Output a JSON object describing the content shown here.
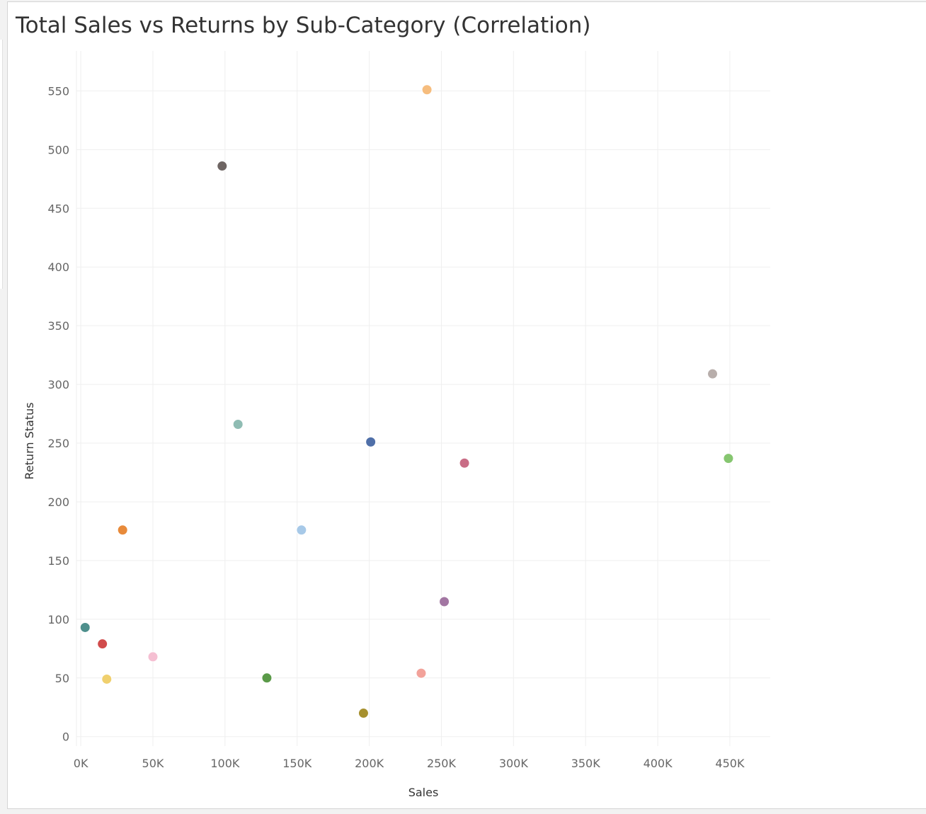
{
  "chart_data": {
    "type": "scatter",
    "title": "Total Sales vs Returns by Sub-Category (Correlation)",
    "xlabel": "Sales",
    "ylabel": "Return Status",
    "xlim": [
      -3000,
      478000
    ],
    "ylim": [
      -8,
      584
    ],
    "x_ticks": [
      0,
      50000,
      100000,
      150000,
      200000,
      250000,
      300000,
      350000,
      400000,
      450000
    ],
    "x_tick_labels": [
      "0K",
      "50K",
      "100K",
      "150K",
      "200K",
      "250K",
      "300K",
      "350K",
      "400K",
      "450K"
    ],
    "y_ticks": [
      0,
      50,
      100,
      150,
      200,
      250,
      300,
      350,
      400,
      450,
      500,
      550
    ],
    "y_tick_labels": [
      "0",
      "50",
      "100",
      "150",
      "200",
      "250",
      "300",
      "350",
      "400",
      "450",
      "500",
      "550"
    ],
    "grid": true,
    "points": [
      {
        "x": 3000,
        "y": 93,
        "color": "#4e8f8c"
      },
      {
        "x": 15000,
        "y": 79,
        "color": "#d14b4b"
      },
      {
        "x": 18000,
        "y": 49,
        "color": "#f0d06e"
      },
      {
        "x": 29000,
        "y": 176,
        "color": "#e88a3a"
      },
      {
        "x": 50000,
        "y": 68,
        "color": "#f5bfd2"
      },
      {
        "x": 98000,
        "y": 486,
        "color": "#6e6563"
      },
      {
        "x": 109000,
        "y": 266,
        "color": "#8fbcb3"
      },
      {
        "x": 129000,
        "y": 50,
        "color": "#5a9a48"
      },
      {
        "x": 153000,
        "y": 176,
        "color": "#a7c9e8"
      },
      {
        "x": 196000,
        "y": 20,
        "color": "#a6902e"
      },
      {
        "x": 201000,
        "y": 251,
        "color": "#4f6fa8"
      },
      {
        "x": 236000,
        "y": 54,
        "color": "#f2a29a"
      },
      {
        "x": 240000,
        "y": 551,
        "color": "#f6bd7e"
      },
      {
        "x": 252000,
        "y": 115,
        "color": "#a276a2"
      },
      {
        "x": 266000,
        "y": 233,
        "color": "#c96d86"
      },
      {
        "x": 438000,
        "y": 309,
        "color": "#b8aeab"
      },
      {
        "x": 449000,
        "y": 237,
        "color": "#86c670"
      }
    ]
  }
}
